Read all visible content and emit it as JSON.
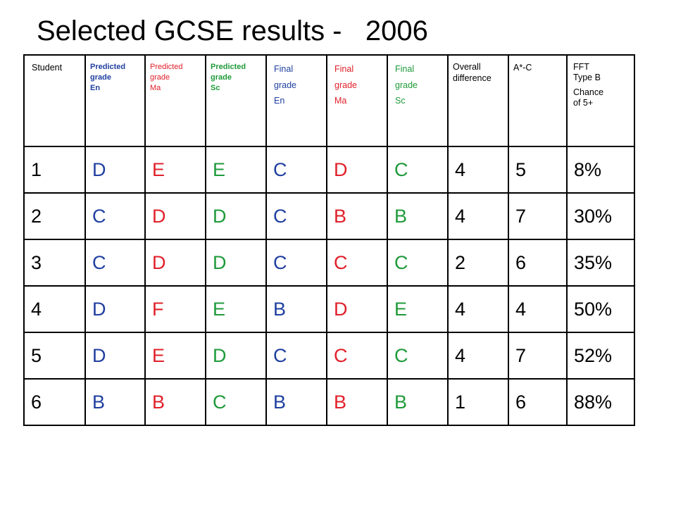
{
  "title": "Selected GCSE results -   2006",
  "colors": {
    "en": "#1f3f9f",
    "ma": "#e0202a",
    "sc": "#1f9a3a",
    "text": "#000000"
  },
  "headers": {
    "student": "Student",
    "pred_en": [
      "Predicted",
      "grade",
      "En"
    ],
    "pred_ma": [
      "Predicted",
      "grade",
      "Ma"
    ],
    "pred_sc": [
      "Predicted",
      "grade",
      "Sc"
    ],
    "final_en": [
      "Final",
      "grade",
      "En"
    ],
    "final_ma": [
      "Final",
      "grade",
      "Ma"
    ],
    "final_sc": [
      "Final",
      "grade",
      "Sc"
    ],
    "overall": [
      "Overall",
      "difference"
    ],
    "astar_c": "A*-C",
    "fft": [
      "FFT",
      "Type B",
      "Chance",
      "of 5+"
    ]
  },
  "rows": [
    {
      "student": "1",
      "pred_en": "D",
      "pred_ma": "E",
      "pred_sc": "E",
      "final_en": "C",
      "final_ma": "D",
      "final_sc": "C",
      "overall": "4",
      "astar_c": "5",
      "fft": "8%"
    },
    {
      "student": "2",
      "pred_en": "C",
      "pred_ma": "D",
      "pred_sc": "D",
      "final_en": "C",
      "final_ma": "B",
      "final_sc": "B",
      "overall": "4",
      "astar_c": "7",
      "fft": "30%"
    },
    {
      "student": "3",
      "pred_en": "C",
      "pred_ma": "D",
      "pred_sc": "D",
      "final_en": "C",
      "final_ma": "C",
      "final_sc": "C",
      "overall": "2",
      "astar_c": "6",
      "fft": "35%"
    },
    {
      "student": "4",
      "pred_en": "D",
      "pred_ma": "F",
      "pred_sc": "E",
      "final_en": "B",
      "final_ma": "D",
      "final_sc": "E",
      "overall": "4",
      "astar_c": "4",
      "fft": "50%"
    },
    {
      "student": "5",
      "pred_en": "D",
      "pred_ma": "E",
      "pred_sc": "D",
      "final_en": "C",
      "final_ma": "C",
      "final_sc": "C",
      "overall": "4",
      "astar_c": "7",
      "fft": "52%"
    },
    {
      "student": "6",
      "pred_en": "B",
      "pred_ma": "B",
      "pred_sc": "C",
      "final_en": "B",
      "final_ma": "B",
      "final_sc": "B",
      "overall": "1",
      "astar_c": "6",
      "fft": "88%"
    }
  ]
}
